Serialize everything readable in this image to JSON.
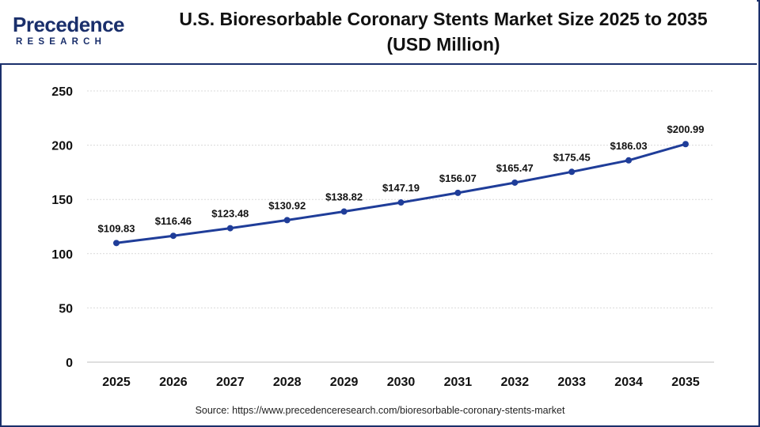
{
  "header": {
    "logo_word": "Precedence",
    "logo_sub": "RESEARCH",
    "title_line1": "U.S. Bioresorbable Coronary Stents Market Size 2025 to 2035",
    "title_line2": "(USD Million)"
  },
  "footer": {
    "source": "Source: https://www.precedenceresearch.com/bioresorbable-coronary-stents-market"
  },
  "colors": {
    "line": "#1f3d99",
    "brand": "#1a2f6b",
    "logo_accent": "#2aa6df"
  },
  "chart_data": {
    "type": "line",
    "title": "U.S. Bioresorbable Coronary Stents Market Size 2025 to 2035 (USD Million)",
    "xlabel": "",
    "ylabel": "",
    "ylim": [
      0,
      250
    ],
    "yticks": [
      0,
      50,
      100,
      150,
      200,
      250
    ],
    "grid": true,
    "legend": "none",
    "categories": [
      "2025",
      "2026",
      "2027",
      "2028",
      "2029",
      "2030",
      "2031",
      "2032",
      "2033",
      "2034",
      "2035"
    ],
    "values": [
      109.83,
      116.46,
      123.48,
      130.92,
      138.82,
      147.19,
      156.07,
      165.47,
      175.45,
      186.03,
      200.99
    ],
    "labels": [
      "$109.83",
      "$116.46",
      "$123.48",
      "$130.92",
      "$138.82",
      "$147.19",
      "$156.07",
      "$165.47",
      "$175.45",
      "$186.03",
      "$200.99"
    ]
  }
}
